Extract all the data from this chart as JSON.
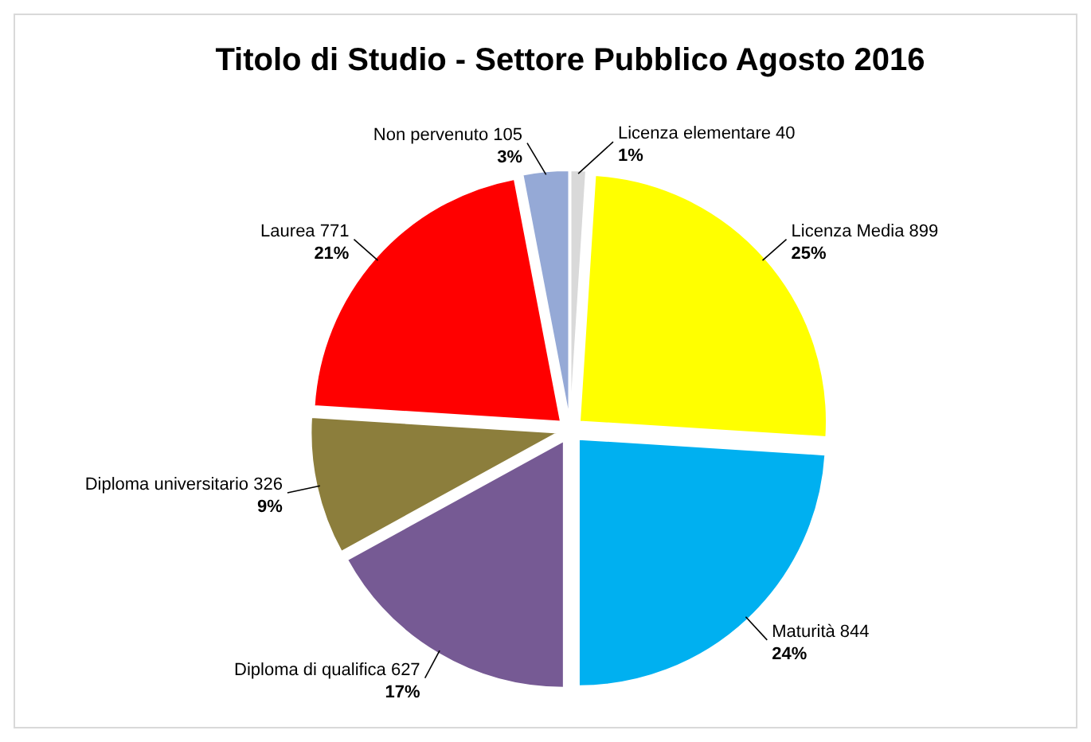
{
  "chart_data": {
    "type": "pie",
    "title": "Titolo di Studio - Settore Pubblico Agosto 2016",
    "categories": [
      "Licenza elementare 40",
      "Licenza Media 899",
      "Maturità 844",
      "Diploma di qualifica 627",
      "Diploma universitario 326",
      "Laurea 771",
      "Non pervenuto 105"
    ],
    "values": [
      1,
      25,
      24,
      17,
      9,
      21,
      3
    ],
    "colors": [
      "#d9d9d9",
      "#ffff00",
      "#00b0f0",
      "#765a94",
      "#8c7e3c",
      "#ff0000",
      "#95a9d6"
    ],
    "value_labels": [
      "1%",
      "25%",
      "24%",
      "17%",
      "9%",
      "21%",
      "3%"
    ]
  }
}
